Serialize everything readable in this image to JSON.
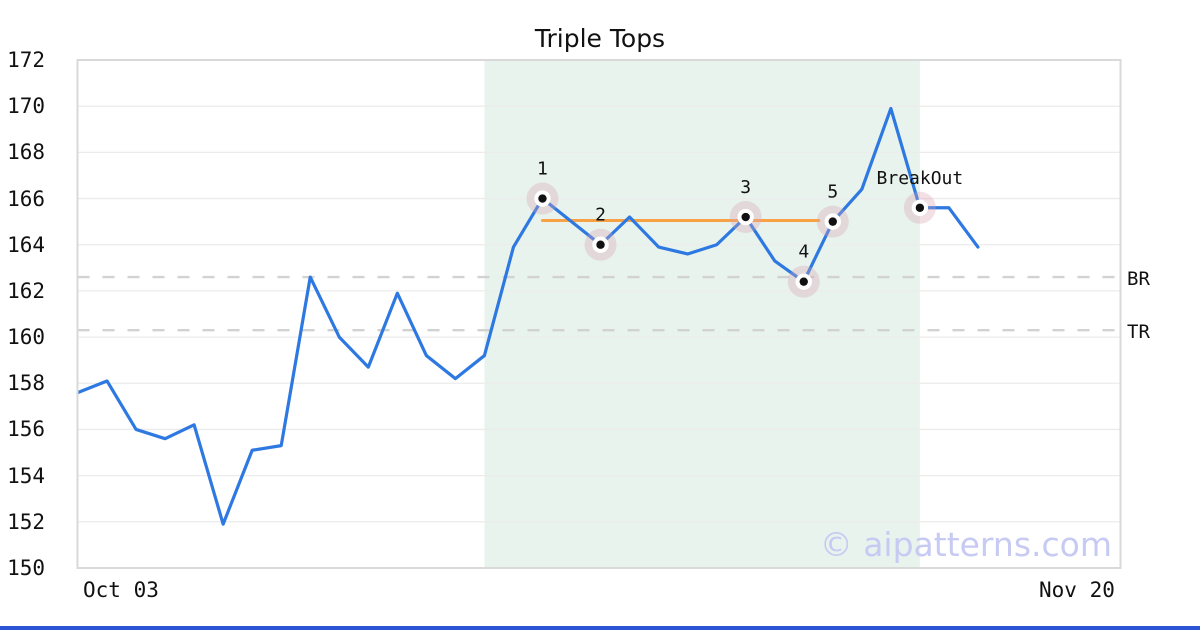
{
  "page": {
    "background": "#ffffff",
    "bottom_bar_color": "#2b55d4"
  },
  "chart_data": {
    "type": "line",
    "title": "Triple Tops",
    "x_axis": {
      "first_label": "Oct 03",
      "last_label": "Nov 20"
    },
    "y_axis": {
      "min": 150,
      "max": 172,
      "tick_step": 2,
      "ticks": [
        150,
        152,
        154,
        156,
        158,
        160,
        162,
        164,
        166,
        168,
        170,
        172
      ]
    },
    "series": [
      {
        "name": "price",
        "color": "#2e79e1",
        "values": [
          157.6,
          158.1,
          156.0,
          155.6,
          156.2,
          151.9,
          155.1,
          155.3,
          162.6,
          160.0,
          158.7,
          161.9,
          159.2,
          158.2,
          159.2,
          163.9,
          166.0,
          165.0,
          164.0,
          165.2,
          163.9,
          163.6,
          164.0,
          165.2,
          163.3,
          162.4,
          165.0,
          166.4,
          169.9,
          165.6,
          165.6,
          163.9
        ]
      }
    ],
    "annotations": [
      {
        "label": "1",
        "index": 16,
        "value": 166.0
      },
      {
        "label": "2",
        "index": 18,
        "value": 164.0
      },
      {
        "label": "3",
        "index": 23,
        "value": 165.2
      },
      {
        "label": "4",
        "index": 25,
        "value": 162.4
      },
      {
        "label": "5",
        "index": 26,
        "value": 165.0
      },
      {
        "label": "BreakOut",
        "index": 29,
        "value": 165.6
      }
    ],
    "resistance_line": {
      "value": 165.05,
      "color": "#f9a245",
      "from_index": 16,
      "to_index": 26
    },
    "threshold_lines": [
      {
        "label": "BR",
        "value": 162.6
      },
      {
        "label": "TR",
        "value": 160.3
      }
    ],
    "highlight_region": {
      "from_index": 14,
      "to_index": 29,
      "color": "#e8f3ee"
    },
    "marker_style": {
      "halo": "rgba(216,160,176,0.33)",
      "ring": "#ffffff",
      "dot": "#111111"
    },
    "grid_color": "#ececec",
    "border_color": "#d9d9d9",
    "threshold_color": "#d2d2d2",
    "watermark": "© aipatterns.com",
    "watermark_color": "#c7caf2"
  }
}
